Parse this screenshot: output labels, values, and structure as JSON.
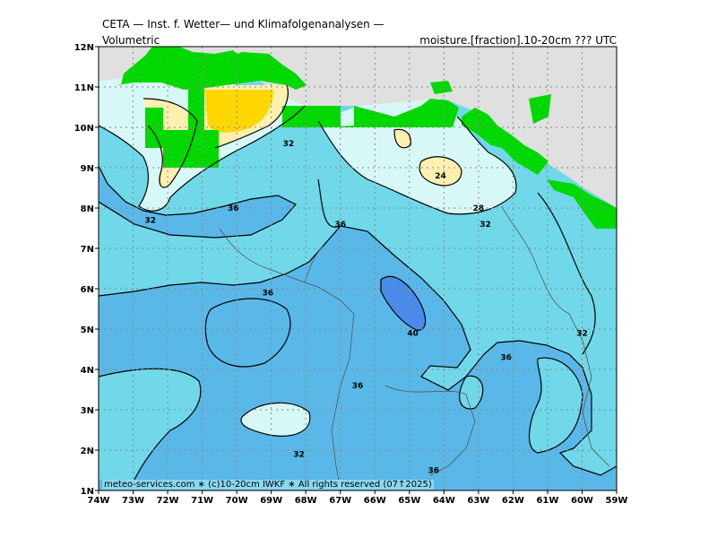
{
  "header": {
    "title": "CETA — Inst. f. Wetter— und Klimafolgenanalysen —",
    "subtitle_left": "Volumetric",
    "subtitle_right": "moisture.[fraction].10-20cm ??? UTC"
  },
  "credit": "meteo-services.com ∗ (c)10-20cm IWKF ∗ All rights reserved (07↑2025)",
  "axes": {
    "lon_labels": [
      "74W",
      "73W",
      "72W",
      "71W",
      "70W",
      "69W",
      "68W",
      "67W",
      "66W",
      "65W",
      "64W",
      "63W",
      "62W",
      "61W",
      "60W",
      "59W"
    ],
    "lat_labels": [
      "12N",
      "11N",
      "10N",
      "9N",
      "8N",
      "7N",
      "6N",
      "5N",
      "4N",
      "3N",
      "2N",
      "1N"
    ]
  },
  "contour_labels": [
    {
      "text": "32",
      "lon": -68.5,
      "lat": 9.6
    },
    {
      "text": "32",
      "lon": -72.5,
      "lat": 7.7
    },
    {
      "text": "24",
      "lon": -64.1,
      "lat": 8.8
    },
    {
      "text": "28",
      "lon": -63.0,
      "lat": 8.0
    },
    {
      "text": "32",
      "lon": -62.8,
      "lat": 7.6
    },
    {
      "text": "36",
      "lon": -70.1,
      "lat": 8.0
    },
    {
      "text": "36",
      "lon": -67.0,
      "lat": 7.6
    },
    {
      "text": "36",
      "lon": -69.1,
      "lat": 5.9
    },
    {
      "text": "40",
      "lon": -64.9,
      "lat": 4.9
    },
    {
      "text": "36",
      "lon": -62.2,
      "lat": 4.3
    },
    {
      "text": "32",
      "lon": -60.0,
      "lat": 4.9
    },
    {
      "text": "36",
      "lon": -66.5,
      "lat": 3.6
    },
    {
      "text": "32",
      "lon": -68.2,
      "lat": 1.9
    },
    {
      "text": "36",
      "lon": -64.3,
      "lat": 1.5
    }
  ],
  "colors": {
    "land_mask": "#00d800",
    "ocean": "#e0e0e0",
    "level_20_24": "#ffd700",
    "level_24_28": "#fff0b0",
    "level_28_32": "#d8f8f8",
    "level_32_36": "#70d8e8",
    "level_36_40": "#5ab8e8",
    "level_40_44": "#4a8ae8"
  }
}
